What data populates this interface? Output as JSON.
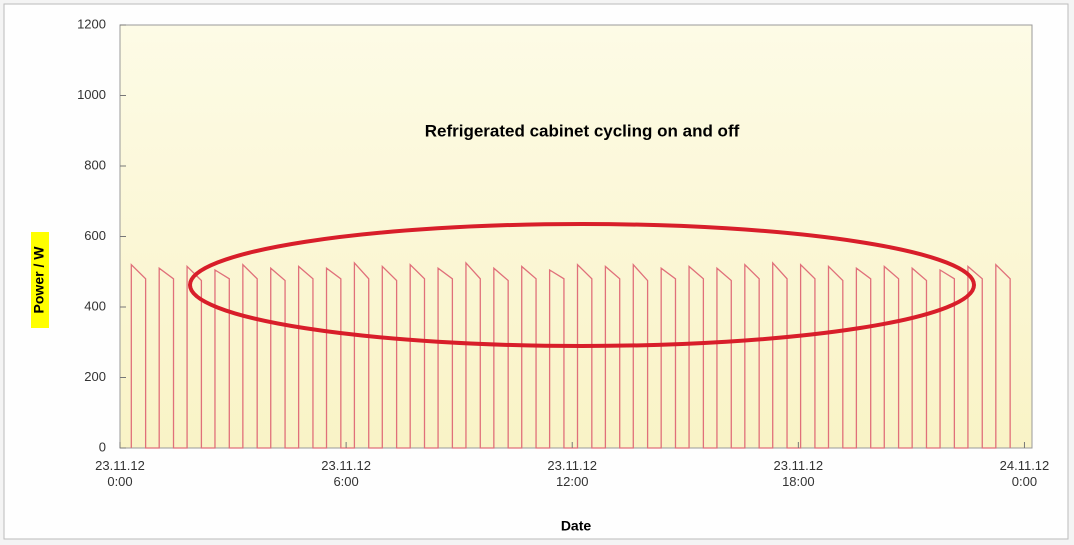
{
  "chart_data": {
    "type": "line",
    "annotation": "Refrigerated cabinet cycling on and off",
    "xlabel": "Date",
    "ylabel": "Power / W",
    "xlim": [
      0,
      24.2
    ],
    "ylim": [
      0,
      1200
    ],
    "yticks": [
      0,
      200,
      400,
      600,
      800,
      1000,
      1200
    ],
    "xticks": [
      {
        "value": 0,
        "label": "23.11.12\n0:00"
      },
      {
        "value": 6,
        "label": "23.11.12\n6:00"
      },
      {
        "value": 12,
        "label": "23.11.12\n12:00"
      },
      {
        "value": 18,
        "label": "23.11.12\n18:00"
      },
      {
        "value": 24,
        "label": "24.11.12\n0:00"
      }
    ],
    "grid": false,
    "series": [
      {
        "name": "Power",
        "color": "#e0707a",
        "x": [
          0.3,
          0.3,
          0.68,
          0.68,
          1.04,
          1.04,
          1.42,
          1.42,
          1.78,
          1.78,
          2.16,
          2.16,
          2.52,
          2.52,
          2.9,
          2.9,
          3.26,
          3.26,
          3.64,
          3.64,
          4.0,
          4.0,
          4.38,
          4.38,
          4.74,
          4.74,
          5.12,
          5.12,
          5.48,
          5.48,
          5.86,
          5.86,
          6.22,
          6.22,
          6.6,
          6.6,
          6.96,
          6.96,
          7.34,
          7.34,
          7.7,
          7.7,
          8.08,
          8.08,
          8.44,
          8.44,
          8.82,
          8.82,
          9.18,
          9.18,
          9.56,
          9.56,
          9.92,
          9.92,
          10.3,
          10.3,
          10.66,
          10.66,
          11.04,
          11.04,
          11.4,
          11.4,
          11.78,
          11.78,
          12.14,
          12.14,
          12.52,
          12.52,
          12.88,
          12.88,
          13.26,
          13.26,
          13.62,
          13.62,
          14.0,
          14.0,
          14.36,
          14.36,
          14.74,
          14.74,
          15.1,
          15.1,
          15.48,
          15.48,
          15.84,
          15.84,
          16.22,
          16.22,
          16.58,
          16.58,
          16.96,
          16.96,
          17.32,
          17.32,
          17.7,
          17.7,
          18.06,
          18.06,
          18.44,
          18.44,
          18.8,
          18.8,
          19.18,
          19.18,
          19.54,
          19.54,
          19.92,
          19.92,
          20.28,
          20.28,
          20.66,
          20.66,
          21.02,
          21.02,
          21.4,
          21.4,
          21.76,
          21.76,
          22.14,
          22.14,
          22.5,
          22.5,
          22.88,
          22.88,
          23.24,
          23.24,
          23.62,
          23.62
        ],
        "values": [
          0,
          520,
          480,
          0,
          0,
          510,
          480,
          0,
          0,
          515,
          475,
          0,
          0,
          505,
          480,
          0,
          0,
          520,
          480,
          0,
          0,
          510,
          475,
          0,
          0,
          515,
          480,
          0,
          0,
          510,
          480,
          0,
          0,
          525,
          480,
          0,
          0,
          515,
          475,
          0,
          0,
          520,
          480,
          0,
          0,
          510,
          480,
          0,
          0,
          525,
          480,
          0,
          0,
          510,
          475,
          0,
          0,
          515,
          480,
          0,
          0,
          505,
          480,
          0,
          0,
          520,
          480,
          0,
          0,
          515,
          480,
          0,
          0,
          520,
          475,
          0,
          0,
          510,
          480,
          0,
          0,
          515,
          480,
          0,
          0,
          510,
          475,
          0,
          0,
          520,
          480,
          0,
          0,
          525,
          480,
          0,
          0,
          520,
          480,
          0,
          0,
          515,
          475,
          0,
          0,
          510,
          480,
          0,
          0,
          515,
          480,
          0,
          0,
          510,
          475,
          0,
          0,
          505,
          480,
          0,
          0,
          515,
          480,
          0,
          0,
          520,
          480,
          0
        ]
      }
    ]
  }
}
